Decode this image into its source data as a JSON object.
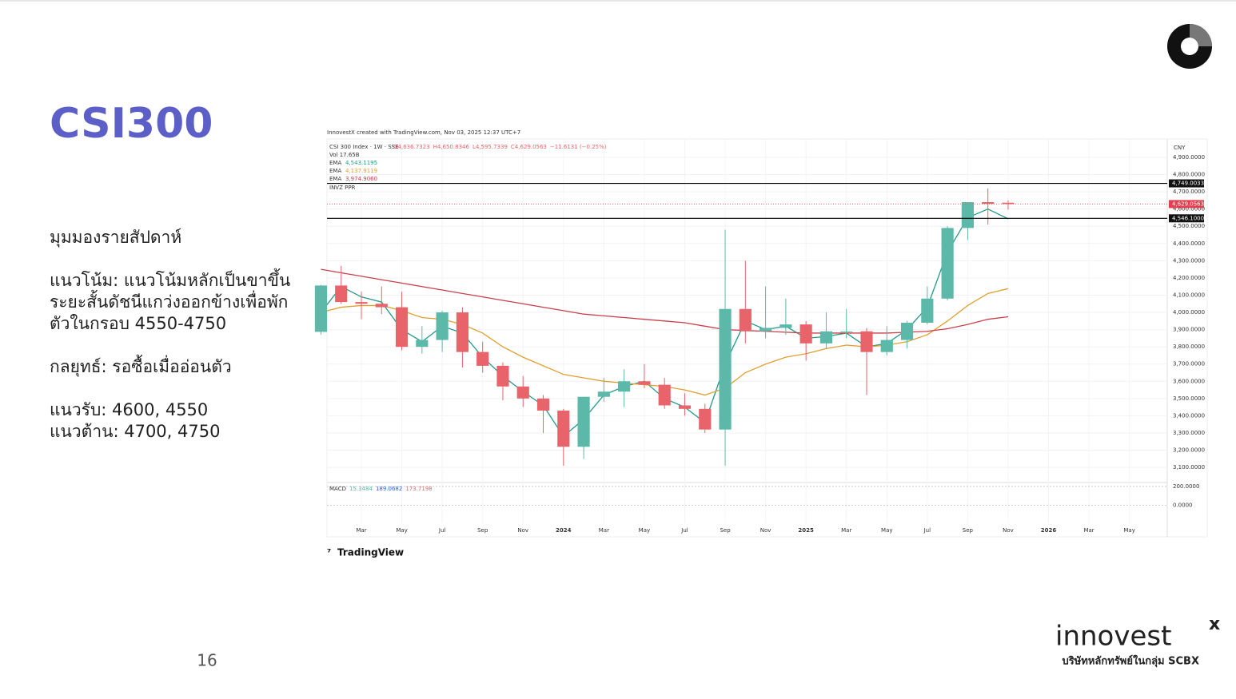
{
  "slide": {
    "title": "CSI300",
    "page_number": "16",
    "paragraphs": [
      [
        "มุมมองรายสัปดาห์"
      ],
      [
        "แนวโน้ม: แนวโน้มหลักเป็นขาขึ้น",
        "ระยะสั้นดัชนีแกว่งออกข้างเพื่อพัก",
        "ตัวในกรอบ 4550-4750"
      ],
      [
        "กลยุทธ์: รอซื้อเมื่ออ่อนตัว"
      ],
      [
        "แนวรับ: 4600, 4550",
        "แนวต้าน: 4700, 4750"
      ]
    ],
    "logo": {
      "brand": "innovest",
      "mark": "x",
      "tagline": "บริษัทหลักทรัพย์ในกลุ่ม SCBX"
    }
  },
  "chart_data": {
    "type": "candlestick",
    "credit": "InnovestX created with TradingView.com, Nov 03, 2025 12:37 UTC+7",
    "title": "CSI 300 Index · 1W · SSE",
    "ohlc_legend": [
      "O4,636.7323",
      "H4,650.8346",
      "L4,595.7339",
      "C4,629.0563",
      "−11.6131 (−0.25%)"
    ],
    "volume_legend": "Vol 17.65B",
    "indicator": "INVZ PPR",
    "currency": "CNY",
    "brand": "TradingView",
    "categories": [
      null,
      null,
      "Mar",
      null,
      "May",
      null,
      "Jul",
      null,
      "Sep",
      null,
      "Nov",
      null,
      "2024",
      null,
      "Mar",
      null,
      "May",
      null,
      "Jul",
      null,
      "Sep",
      null,
      "Nov",
      null,
      "2025",
      null,
      "Mar",
      null,
      "May",
      null,
      "Jul",
      null,
      "Sep",
      null,
      "Nov",
      null,
      "2026",
      null,
      "Mar",
      null,
      "May"
    ],
    "open": [
      3887,
      4156,
      4060,
      4050,
      4030,
      3800,
      3840,
      4000,
      3770,
      3690,
      3570,
      3500,
      3430,
      3220,
      3510,
      3540,
      3600,
      3580,
      3460,
      3440,
      3320,
      4020,
      3890,
      3910,
      3930,
      3820,
      3890,
      3890,
      3770,
      3840,
      3940,
      4080,
      4490,
      4640,
      4636.7323,
      null,
      null,
      null,
      null,
      null,
      null
    ],
    "high": [
      4160,
      4270,
      4120,
      4150,
      4120,
      3920,
      4010,
      4030,
      3830,
      3710,
      3630,
      3520,
      3440,
      3500,
      3620,
      3670,
      3700,
      3620,
      3530,
      3470,
      4480,
      4300,
      4150,
      4080,
      3950,
      4000,
      4020,
      3910,
      3920,
      3950,
      4150,
      4500,
      4640,
      4720,
      4650.8346,
      null,
      null,
      null,
      null,
      null,
      null
    ],
    "low": [
      3870,
      4050,
      3960,
      3990,
      3780,
      3760,
      3770,
      3680,
      3650,
      3490,
      3450,
      3300,
      3110,
      3150,
      3480,
      3450,
      3560,
      3440,
      3400,
      3300,
      3110,
      3820,
      3850,
      3870,
      3720,
      3790,
      3850,
      3520,
      3750,
      3790,
      3930,
      4070,
      4420,
      4510,
      4595.7339,
      null,
      null,
      null,
      null,
      null,
      null
    ],
    "close": [
      4156,
      4060,
      4050,
      4030,
      3800,
      3840,
      4000,
      3770,
      3690,
      3570,
      3500,
      3430,
      3220,
      3510,
      3540,
      3600,
      3580,
      3460,
      3440,
      3320,
      4020,
      3890,
      3910,
      3930,
      3820,
      3890,
      3890,
      3770,
      3840,
      3940,
      4080,
      4490,
      4640,
      4630,
      4629.0563,
      null,
      null,
      null,
      null,
      null,
      null
    ],
    "up_color": "#5cb8a8",
    "down_color": "#e8636a",
    "series": [
      {
        "name": "EMA",
        "color": "#22998a",
        "last_label": "4,543.1195",
        "values": [
          4000,
          4150,
          4090,
          4060,
          3900,
          3830,
          3920,
          3880,
          3740,
          3630,
          3540,
          3460,
          3280,
          3380,
          3520,
          3570,
          3600,
          3500,
          3450,
          3360,
          3700,
          3950,
          3900,
          3920,
          3850,
          3860,
          3880,
          3800,
          3820,
          3900,
          4030,
          4350,
          4550,
          4600,
          4543.1195,
          null,
          null,
          null,
          null,
          null,
          null
        ]
      },
      {
        "name": "EMA",
        "color": "#e0a030",
        "last_label": "4,137.9119",
        "values": [
          4000,
          4030,
          4040,
          4040,
          4010,
          3970,
          3960,
          3930,
          3880,
          3800,
          3740,
          3690,
          3640,
          3620,
          3600,
          3590,
          3580,
          3570,
          3550,
          3520,
          3560,
          3650,
          3700,
          3740,
          3760,
          3790,
          3810,
          3800,
          3810,
          3830,
          3870,
          3950,
          4040,
          4110,
          4137.9119,
          null,
          null,
          null,
          null,
          null,
          null
        ]
      },
      {
        "name": "EMA",
        "color": "#c8404a",
        "last_label": "3,974.9060",
        "values": [
          4250,
          4230,
          4210,
          4190,
          4170,
          4150,
          4130,
          4110,
          4090,
          4070,
          4050,
          4030,
          4010,
          3990,
          3980,
          3970,
          3960,
          3950,
          3940,
          3920,
          3900,
          3895,
          3890,
          3885,
          3880,
          3880,
          3880,
          3880,
          3880,
          3885,
          3890,
          3905,
          3930,
          3960,
          3974.906,
          null,
          null,
          null,
          null,
          null,
          null
        ]
      }
    ],
    "levels": [
      {
        "value": 4749.0033,
        "label": "4,749.0033"
      },
      {
        "value": 4546.1,
        "label": "4,546.1000"
      }
    ],
    "last_price": {
      "value": 4629.0563,
      "label": "4,629.0563"
    },
    "ylim": [
      3017,
      5002
    ],
    "yticks": [
      {
        "value": 3100,
        "label": "3,100.0000"
      },
      {
        "value": 3200,
        "label": "3,200.0000"
      },
      {
        "value": 3300,
        "label": "3,300.0000"
      },
      {
        "value": 3400,
        "label": "3,400.0000"
      },
      {
        "value": 3500,
        "label": "3,500.0000"
      },
      {
        "value": 3600,
        "label": "3,600.0000"
      },
      {
        "value": 3700,
        "label": "3,700.0000"
      },
      {
        "value": 3800,
        "label": "3,800.0000"
      },
      {
        "value": 3900,
        "label": "3,900.0000"
      },
      {
        "value": 4000,
        "label": "4,000.0000"
      },
      {
        "value": 4100,
        "label": "4,100.0000"
      },
      {
        "value": 4200,
        "label": "4,200.0000"
      },
      {
        "value": 4300,
        "label": "4,300.0000"
      },
      {
        "value": 4400,
        "label": "4,400.0000"
      },
      {
        "value": 4500,
        "label": "4,500.0000"
      },
      {
        "value": 4600,
        "label": "4,600.0000"
      },
      {
        "value": 4700,
        "label": "4,700.0000"
      },
      {
        "value": 4800,
        "label": "4,800.0000"
      },
      {
        "value": 4900,
        "label": "4,900.0000"
      }
    ],
    "macd": {
      "legend": [
        "MACD",
        "15.3484",
        "189.0682",
        "173.7198"
      ],
      "ylim": [
        -133,
        233
      ],
      "yticks": [
        {
          "value": 0,
          "label": "0.0000"
        },
        {
          "value": 200,
          "label": "200.0000"
        }
      ]
    },
    "grid": true
  }
}
